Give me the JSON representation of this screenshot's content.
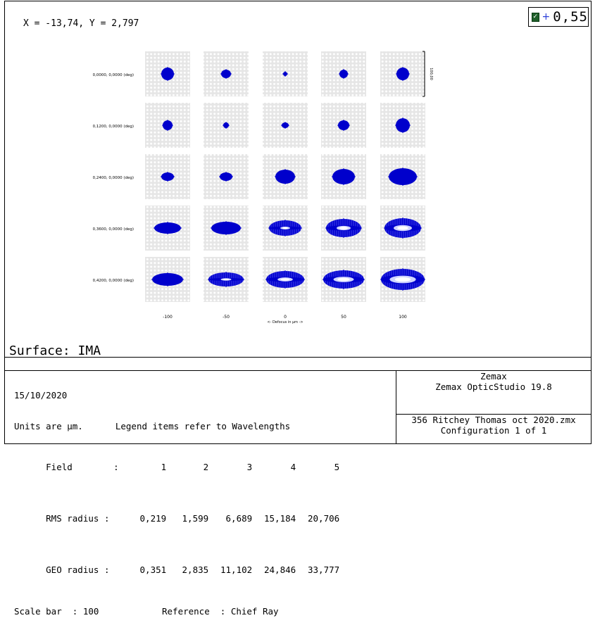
{
  "coordinate_readout": "X = -13,74, Y = 2,797",
  "wavelength_selector": {
    "checked": true,
    "plus": "+",
    "value": "0,55",
    "check_color": "#1f5f2a",
    "plus_color": "#2b3ed8"
  },
  "plot": {
    "field_labels": [
      "0,0000, 0,0000 (deg)",
      "0,1200, 0,0000 (deg)",
      "0,2400, 0,0000 (deg)",
      "0,3600, 0,0000 (deg)",
      "0,4200, 0,0000 (deg)"
    ],
    "defocus_labels": [
      "-100",
      "-50",
      "0",
      "50",
      "100"
    ],
    "axis_label": "<- Defocus in µm ->",
    "scale_bar_label": "100,00",
    "spot_color": "#0000cc",
    "cell_bg": "#e6e6e6",
    "spot_sizes": [
      [
        [
          9,
          9
        ],
        [
          7,
          6
        ],
        [
          3,
          3
        ],
        [
          6,
          6
        ],
        [
          9,
          9
        ]
      ],
      [
        [
          7,
          7
        ],
        [
          4,
          4
        ],
        [
          5,
          4
        ],
        [
          8,
          7
        ],
        [
          10,
          10
        ]
      ],
      [
        [
          9,
          6
        ],
        [
          9,
          6
        ],
        [
          14,
          10
        ],
        [
          16,
          11
        ],
        [
          20,
          12
        ]
      ],
      [
        [
          19,
          8
        ],
        [
          21,
          9
        ],
        [
          23,
          11
        ],
        [
          25,
          13
        ],
        [
          26,
          14
        ]
      ],
      [
        [
          22,
          9
        ],
        [
          25,
          10
        ],
        [
          27,
          12
        ],
        [
          29,
          13
        ],
        [
          31,
          15
        ]
      ]
    ],
    "spot_holes": [
      [
        0,
        0,
        0,
        0,
        0
      ],
      [
        0,
        0,
        0,
        0,
        0
      ],
      [
        0,
        0,
        0,
        0,
        0
      ],
      [
        0,
        0,
        0.3,
        0.4,
        0.5
      ],
      [
        0,
        0.3,
        0.4,
        0.5,
        0.6
      ]
    ]
  },
  "surface_label": "Surface: IMA",
  "info": {
    "date": "15/10/2020",
    "units": "Units are µm.",
    "legend_note": "Legend items refer to Wavelengths",
    "field_label": "Field",
    "field_sep": ":",
    "fields": [
      "1",
      "2",
      "3",
      "4",
      "5"
    ],
    "rms_label": "RMS radius :",
    "rms": [
      "0,219",
      "1,599",
      "6,689",
      "15,184",
      "20,706"
    ],
    "geo_label": "GEO radius :",
    "geo": [
      "0,351",
      "2,835",
      "11,102",
      "24,846",
      "33,777"
    ],
    "scale_bar": "Scale bar  : 100",
    "reference": "Reference  : Chief Ray",
    "company": "Zemax",
    "product": "Zemax OpticStudio 19.8",
    "file": "356 Ritchey Thomas oct 2020.zmx",
    "configuration": "Configuration 1 of 1"
  }
}
